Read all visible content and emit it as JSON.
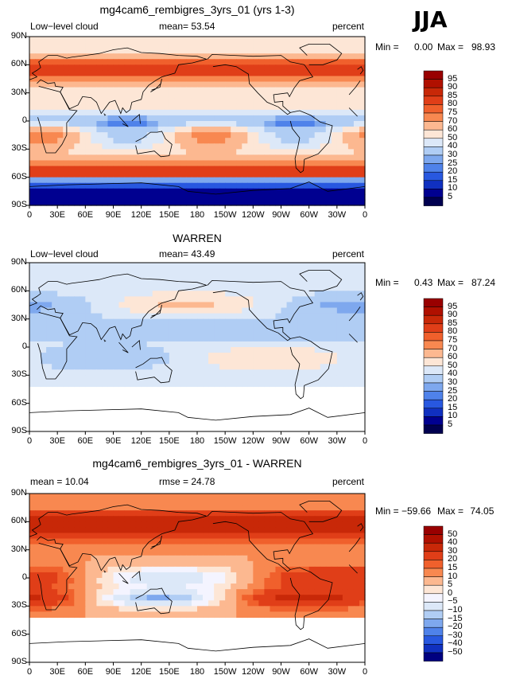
{
  "season": "JJA",
  "x_ticks": [
    "0",
    "30E",
    "60E",
    "90E",
    "120E",
    "150E",
    "180",
    "150W",
    "120W",
    "90W",
    "60W",
    "30W",
    "0"
  ],
  "y_ticks": [
    "90N",
    "60N",
    "30N",
    "0",
    "30S",
    "60S",
    "90S"
  ],
  "panels": [
    {
      "title": "mg4cam6_rembigres_3yrs_01 (yrs 1-3)",
      "left_label": "Low−level cloud",
      "center_label": "mean=  53.54",
      "units": "percent",
      "min_label": "Min = ",
      "min_value": "0.00",
      "max_label": "Max =",
      "max_value": "98.93",
      "levels": [
        "95",
        "90",
        "85",
        "80",
        "75",
        "70",
        "60",
        "50",
        "40",
        "30",
        "25",
        "20",
        "15",
        "10",
        "5"
      ],
      "colors": [
        "#990000",
        "#b01000",
        "#c82808",
        "#e03e18",
        "#f0602c",
        "#f88850",
        "#fcb890",
        "#fde6d6",
        "#dce8f8",
        "#b0cdf4",
        "#7ea8ee",
        "#4f82ea",
        "#2858e0",
        "#1030c0",
        "#000090",
        "#000050"
      ]
    },
    {
      "title": "WARREN",
      "left_label": "Low−level cloud",
      "center_label": "mean=  43.49",
      "units": "percent",
      "min_label": "Min = ",
      "min_value": "0.43",
      "max_label": "Max =",
      "max_value": "87.24",
      "levels": [
        "95",
        "90",
        "85",
        "80",
        "75",
        "70",
        "60",
        "50",
        "40",
        "30",
        "25",
        "20",
        "15",
        "10",
        "5"
      ],
      "colors": [
        "#990000",
        "#b01000",
        "#c82808",
        "#e03e18",
        "#f0602c",
        "#f88850",
        "#fcb890",
        "#fde6d6",
        "#dce8f8",
        "#b0cdf4",
        "#7ea8ee",
        "#4f82ea",
        "#2858e0",
        "#1030c0",
        "#000090",
        "#000050"
      ]
    },
    {
      "title": "mg4cam6_rembigres_3yrs_01 - WARREN",
      "left_label": "mean =  10.04",
      "center_label": "rmse =  24.78",
      "units": "percent",
      "min_label": "Min = ",
      "min_value": "−59.66",
      "max_label": "Max =",
      "max_value": " 74.05",
      "levels": [
        "50",
        "40",
        "30",
        "20",
        "15",
        "10",
        "5",
        "0",
        "−5",
        "−10",
        "−15",
        "−20",
        "−30",
        "−40",
        "−50"
      ],
      "colors": [
        "#990000",
        "#b01000",
        "#c82808",
        "#e03e18",
        "#f0602c",
        "#f88850",
        "#fcb890",
        "#fde6d6",
        "#f4f4ff",
        "#dce8f8",
        "#b0cdf4",
        "#7ea8ee",
        "#4f82ea",
        "#2858e0",
        "#1030c0",
        "#000080"
      ]
    }
  ]
}
